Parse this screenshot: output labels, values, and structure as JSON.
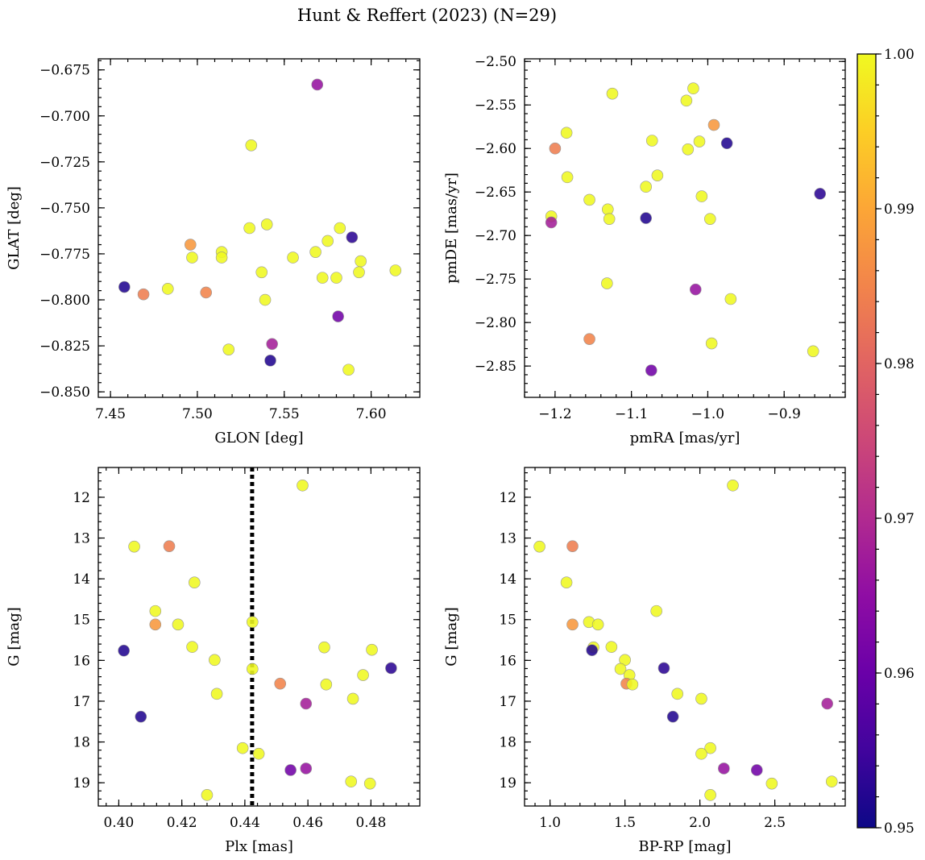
{
  "figure": {
    "title": "Hunt & Reffert (2023) (N=29)"
  },
  "colorbar": {
    "cmap": "plasma",
    "range": [
      0.95,
      1.0
    ],
    "ticks": [
      0.95,
      0.96,
      0.97,
      0.98,
      0.99,
      1.0
    ],
    "tick_labels": [
      "0.95",
      "0.96",
      "0.97",
      "0.98",
      "0.99",
      "1.00"
    ]
  },
  "chart_data": [
    {
      "type": "scatter",
      "xlabel": "GLON [deg]",
      "ylabel": "GLAT [deg]",
      "xlim": [
        7.443,
        7.628
      ],
      "ylim": [
        -0.853,
        -0.669
      ],
      "xticks": [
        7.45,
        7.5,
        7.55,
        7.6
      ],
      "xtick_labels": [
        "7.45",
        "7.50",
        "7.55",
        "7.60"
      ],
      "yticks": [
        -0.675,
        -0.7,
        -0.725,
        -0.75,
        -0.775,
        -0.8,
        -0.825,
        -0.85
      ],
      "ytick_labels": [
        "−0.675",
        "−0.700",
        "−0.725",
        "−0.750",
        "−0.775",
        "−0.800",
        "−0.825",
        "−0.850"
      ],
      "points": [
        {
          "x": 7.569,
          "y": -0.683,
          "c": 0.966
        },
        {
          "x": 7.531,
          "y": -0.716,
          "c": 1.0
        },
        {
          "x": 7.54,
          "y": -0.759,
          "c": 1.0
        },
        {
          "x": 7.53,
          "y": -0.761,
          "c": 1.0
        },
        {
          "x": 7.582,
          "y": -0.761,
          "c": 1.0
        },
        {
          "x": 7.589,
          "y": -0.766,
          "c": 0.953
        },
        {
          "x": 7.496,
          "y": -0.77,
          "c": 0.988
        },
        {
          "x": 7.575,
          "y": -0.768,
          "c": 1.0
        },
        {
          "x": 7.514,
          "y": -0.774,
          "c": 1.0
        },
        {
          "x": 7.568,
          "y": -0.774,
          "c": 1.0
        },
        {
          "x": 7.497,
          "y": -0.777,
          "c": 1.0
        },
        {
          "x": 7.514,
          "y": -0.777,
          "c": 1.0
        },
        {
          "x": 7.555,
          "y": -0.777,
          "c": 1.0
        },
        {
          "x": 7.594,
          "y": -0.779,
          "c": 1.0
        },
        {
          "x": 7.614,
          "y": -0.784,
          "c": 1.0
        },
        {
          "x": 7.537,
          "y": -0.785,
          "c": 1.0
        },
        {
          "x": 7.593,
          "y": -0.785,
          "c": 1.0
        },
        {
          "x": 7.572,
          "y": -0.788,
          "c": 1.0
        },
        {
          "x": 7.58,
          "y": -0.788,
          "c": 1.0
        },
        {
          "x": 7.458,
          "y": -0.793,
          "c": 0.952
        },
        {
          "x": 7.483,
          "y": -0.794,
          "c": 1.0
        },
        {
          "x": 7.469,
          "y": -0.797,
          "c": 0.984
        },
        {
          "x": 7.505,
          "y": -0.796,
          "c": 0.985
        },
        {
          "x": 7.539,
          "y": -0.8,
          "c": 1.0
        },
        {
          "x": 7.581,
          "y": -0.809,
          "c": 0.961
        },
        {
          "x": 7.543,
          "y": -0.824,
          "c": 0.968
        },
        {
          "x": 7.518,
          "y": -0.827,
          "c": 1.0
        },
        {
          "x": 7.542,
          "y": -0.833,
          "c": 0.952
        },
        {
          "x": 7.587,
          "y": -0.838,
          "c": 1.0
        }
      ]
    },
    {
      "type": "scatter",
      "xlabel": "pmRA [mas/yr]",
      "ylabel": "pmDE [mas/yr]",
      "xlim": [
        -1.24,
        -0.82
      ],
      "ylim": [
        -2.886,
        -2.497
      ],
      "xticks": [
        -1.2,
        -1.1,
        -1.0,
        -0.9
      ],
      "xtick_labels": [
        "−1.2",
        "−1.1",
        "−1.0",
        "−0.9"
      ],
      "yticks": [
        -2.5,
        -2.55,
        -2.6,
        -2.65,
        -2.7,
        -2.75,
        -2.8,
        -2.85
      ],
      "ytick_labels": [
        "−2.50",
        "−2.55",
        "−2.60",
        "−2.65",
        "−2.70",
        "−2.75",
        "−2.80",
        "−2.85"
      ],
      "points": [
        {
          "x": -1.019,
          "y": -2.531,
          "c": 1.0
        },
        {
          "x": -1.125,
          "y": -2.537,
          "c": 1.0
        },
        {
          "x": -1.028,
          "y": -2.545,
          "c": 1.0
        },
        {
          "x": -0.992,
          "y": -2.573,
          "c": 0.988
        },
        {
          "x": -1.185,
          "y": -2.582,
          "c": 1.0
        },
        {
          "x": -1.073,
          "y": -2.591,
          "c": 1.0
        },
        {
          "x": -1.011,
          "y": -2.592,
          "c": 1.0
        },
        {
          "x": -0.975,
          "y": -2.594,
          "c": 0.952
        },
        {
          "x": -1.2,
          "y": -2.6,
          "c": 0.984
        },
        {
          "x": -1.026,
          "y": -2.601,
          "c": 1.0
        },
        {
          "x": -1.066,
          "y": -2.631,
          "c": 1.0
        },
        {
          "x": -1.184,
          "y": -2.633,
          "c": 1.0
        },
        {
          "x": -1.081,
          "y": -2.644,
          "c": 1.0
        },
        {
          "x": -0.853,
          "y": -2.652,
          "c": 0.953
        },
        {
          "x": -1.008,
          "y": -2.655,
          "c": 1.0
        },
        {
          "x": -1.155,
          "y": -2.659,
          "c": 1.0
        },
        {
          "x": -1.131,
          "y": -2.67,
          "c": 1.0
        },
        {
          "x": -1.205,
          "y": -2.678,
          "c": 1.0
        },
        {
          "x": -1.081,
          "y": -2.68,
          "c": 0.952
        },
        {
          "x": -1.129,
          "y": -2.681,
          "c": 1.0
        },
        {
          "x": -0.997,
          "y": -2.681,
          "c": 1.0
        },
        {
          "x": -1.205,
          "y": -2.685,
          "c": 0.968
        },
        {
          "x": -1.132,
          "y": -2.755,
          "c": 1.0
        },
        {
          "x": -1.016,
          "y": -2.762,
          "c": 0.966
        },
        {
          "x": -0.97,
          "y": -2.773,
          "c": 1.0
        },
        {
          "x": -1.155,
          "y": -2.819,
          "c": 0.985
        },
        {
          "x": -0.995,
          "y": -2.824,
          "c": 1.0
        },
        {
          "x": -0.862,
          "y": -2.833,
          "c": 1.0
        },
        {
          "x": -1.074,
          "y": -2.855,
          "c": 0.961
        }
      ]
    },
    {
      "type": "scatter",
      "xlabel": "Plx [mas]",
      "ylabel": "G [mag]",
      "xlim": [
        0.3935,
        0.4955
      ],
      "ylim": [
        19.57,
        11.27
      ],
      "yinverted": true,
      "xticks": [
        0.4,
        0.42,
        0.44,
        0.46,
        0.48
      ],
      "xtick_labels": [
        "0.40",
        "0.42",
        "0.44",
        "0.46",
        "0.48"
      ],
      "yticks": [
        12,
        13,
        14,
        15,
        16,
        17,
        18,
        19
      ],
      "ytick_labels": [
        "12",
        "13",
        "14",
        "15",
        "16",
        "17",
        "18",
        "19"
      ],
      "vline": {
        "x": 0.4423,
        "style": "dotted"
      },
      "points": [
        {
          "x": 0.4583,
          "y": 11.71,
          "c": 1.0
        },
        {
          "x": 0.4049,
          "y": 13.21,
          "c": 1.0
        },
        {
          "x": 0.416,
          "y": 13.2,
          "c": 0.984
        },
        {
          "x": 0.424,
          "y": 14.09,
          "c": 1.0
        },
        {
          "x": 0.4116,
          "y": 14.79,
          "c": 1.0
        },
        {
          "x": 0.4116,
          "y": 15.12,
          "c": 0.988
        },
        {
          "x": 0.4188,
          "y": 15.12,
          "c": 1.0
        },
        {
          "x": 0.4424,
          "y": 15.06,
          "c": 1.0
        },
        {
          "x": 0.4233,
          "y": 15.67,
          "c": 1.0
        },
        {
          "x": 0.4652,
          "y": 15.68,
          "c": 1.0
        },
        {
          "x": 0.4803,
          "y": 15.74,
          "c": 1.0
        },
        {
          "x": 0.4016,
          "y": 15.76,
          "c": 0.952
        },
        {
          "x": 0.4304,
          "y": 15.99,
          "c": 1.0
        },
        {
          "x": 0.4864,
          "y": 16.19,
          "c": 0.953
        },
        {
          "x": 0.4424,
          "y": 16.21,
          "c": 1.0
        },
        {
          "x": 0.4775,
          "y": 16.36,
          "c": 1.0
        },
        {
          "x": 0.4512,
          "y": 16.57,
          "c": 0.985
        },
        {
          "x": 0.4658,
          "y": 16.59,
          "c": 1.0
        },
        {
          "x": 0.4311,
          "y": 16.82,
          "c": 1.0
        },
        {
          "x": 0.4743,
          "y": 16.94,
          "c": 1.0
        },
        {
          "x": 0.4594,
          "y": 17.06,
          "c": 0.968
        },
        {
          "x": 0.407,
          "y": 17.38,
          "c": 0.952
        },
        {
          "x": 0.4393,
          "y": 18.15,
          "c": 1.0
        },
        {
          "x": 0.4444,
          "y": 18.29,
          "c": 1.0
        },
        {
          "x": 0.4594,
          "y": 18.65,
          "c": 0.966
        },
        {
          "x": 0.4545,
          "y": 18.69,
          "c": 0.961
        },
        {
          "x": 0.4737,
          "y": 18.97,
          "c": 1.0
        },
        {
          "x": 0.4797,
          "y": 19.02,
          "c": 1.0
        },
        {
          "x": 0.428,
          "y": 19.3,
          "c": 1.0
        }
      ]
    },
    {
      "type": "scatter",
      "xlabel": "BP-RP [mag]",
      "ylabel": "G [mag]",
      "xlim": [
        0.83,
        2.97
      ],
      "ylim": [
        19.57,
        11.27
      ],
      "yinverted": true,
      "xticks": [
        1.0,
        1.5,
        2.0,
        2.5
      ],
      "xtick_labels": [
        "1.0",
        "1.5",
        "2.0",
        "2.5"
      ],
      "yticks": [
        12,
        13,
        14,
        15,
        16,
        17,
        18,
        19
      ],
      "ytick_labels": [
        "12",
        "13",
        "14",
        "15",
        "16",
        "17",
        "18",
        "19"
      ],
      "points": [
        {
          "x": 2.22,
          "y": 11.71,
          "c": 1.0
        },
        {
          "x": 0.93,
          "y": 13.21,
          "c": 1.0
        },
        {
          "x": 1.15,
          "y": 13.2,
          "c": 0.984
        },
        {
          "x": 1.11,
          "y": 14.09,
          "c": 1.0
        },
        {
          "x": 1.71,
          "y": 14.79,
          "c": 1.0
        },
        {
          "x": 1.15,
          "y": 15.12,
          "c": 0.988
        },
        {
          "x": 1.26,
          "y": 15.06,
          "c": 1.0
        },
        {
          "x": 1.32,
          "y": 15.12,
          "c": 1.0
        },
        {
          "x": 1.41,
          "y": 15.67,
          "c": 1.0
        },
        {
          "x": 1.29,
          "y": 15.68,
          "c": 1.0
        },
        {
          "x": 1.28,
          "y": 15.75,
          "c": 0.952
        },
        {
          "x": 1.5,
          "y": 15.99,
          "c": 1.0
        },
        {
          "x": 1.76,
          "y": 16.19,
          "c": 0.953
        },
        {
          "x": 1.47,
          "y": 16.21,
          "c": 1.0
        },
        {
          "x": 1.53,
          "y": 16.36,
          "c": 1.0
        },
        {
          "x": 1.51,
          "y": 16.57,
          "c": 0.985
        },
        {
          "x": 1.55,
          "y": 16.59,
          "c": 1.0
        },
        {
          "x": 1.85,
          "y": 16.82,
          "c": 1.0
        },
        {
          "x": 2.01,
          "y": 16.94,
          "c": 1.0
        },
        {
          "x": 2.85,
          "y": 17.06,
          "c": 0.968
        },
        {
          "x": 1.82,
          "y": 17.38,
          "c": 0.952
        },
        {
          "x": 2.07,
          "y": 18.15,
          "c": 1.0
        },
        {
          "x": 2.01,
          "y": 18.29,
          "c": 1.0
        },
        {
          "x": 2.16,
          "y": 18.65,
          "c": 0.966
        },
        {
          "x": 2.38,
          "y": 18.69,
          "c": 0.961
        },
        {
          "x": 2.88,
          "y": 18.97,
          "c": 1.0
        },
        {
          "x": 2.48,
          "y": 19.02,
          "c": 1.0
        },
        {
          "x": 2.07,
          "y": 19.3,
          "c": 1.0
        }
      ]
    }
  ]
}
